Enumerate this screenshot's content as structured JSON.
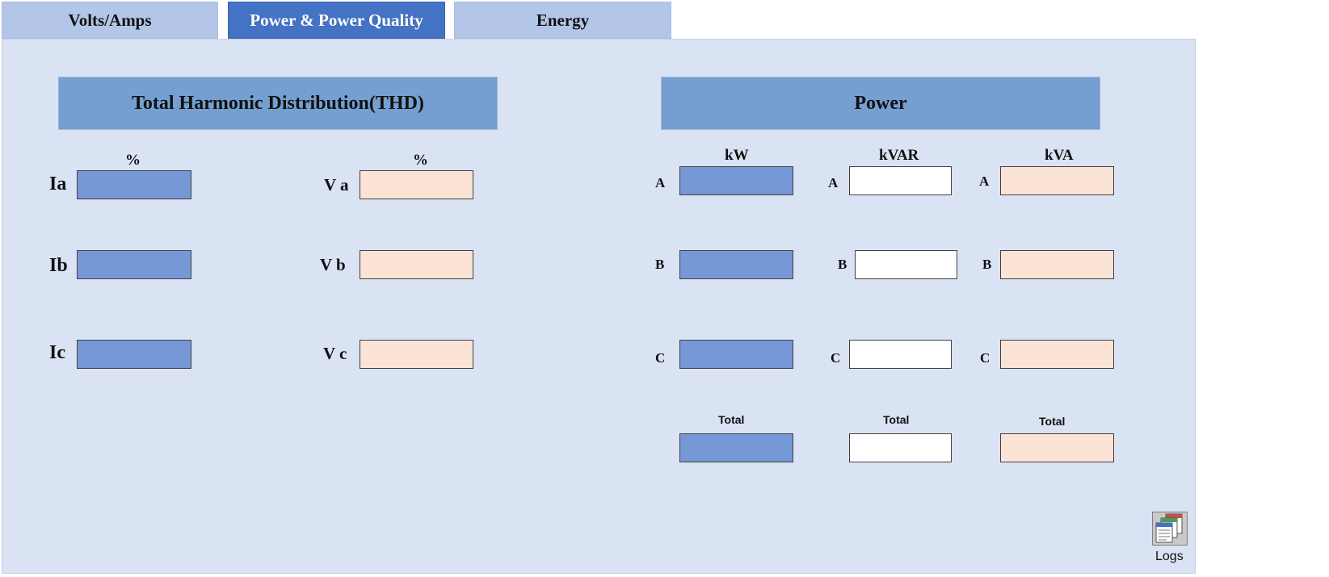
{
  "tabs": [
    {
      "label": "Volts/Amps",
      "active": false
    },
    {
      "label": "Power & Power Quality",
      "active": true
    },
    {
      "label": "Energy",
      "active": false
    }
  ],
  "thd": {
    "title": "Total Harmonic Distribution(THD)",
    "current_unit": "%",
    "voltage_unit": "%",
    "current_labels": [
      "Ia",
      "Ib",
      "Ic"
    ],
    "voltage_labels": [
      "V a",
      "V b",
      "V c"
    ]
  },
  "power": {
    "title": "Power",
    "columns": [
      "kW",
      "kVAR",
      "kVA"
    ],
    "phase_labels": [
      "A",
      "B",
      "C"
    ],
    "total_label": "Total"
  },
  "logs": {
    "label": "Logs",
    "icon": "logs-icon"
  },
  "colors": {
    "tab_inactive": "#b4c6e7",
    "tab_active": "#4472c4",
    "panel_bg": "#dae3f3",
    "header_bg": "#749fd0",
    "kw_box": "#7698d6",
    "kva_box": "#fbe4d6",
    "kvar_box": "#ffffff"
  }
}
